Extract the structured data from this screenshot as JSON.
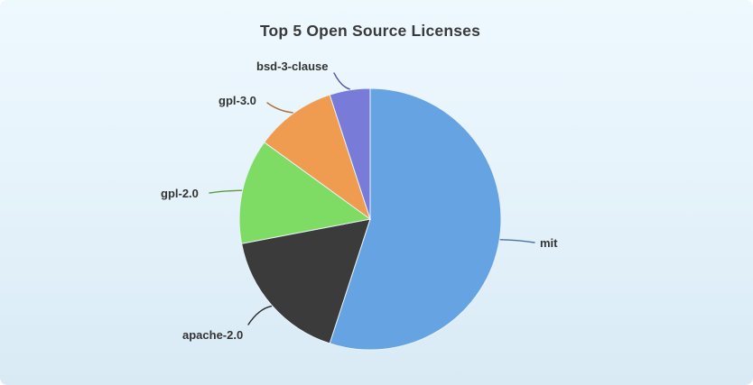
{
  "page": {
    "background_gradient": [
      "#eef9fe",
      "#d9eaf5"
    ]
  },
  "chart_data": {
    "type": "pie",
    "title": "Top 5 Open Source Licenses",
    "slices": [
      {
        "name": "mit",
        "value": 55,
        "color": "#66a3e3"
      },
      {
        "name": "apache-2.0",
        "value": 17,
        "color": "#3b3b3b"
      },
      {
        "name": "gpl-2.0",
        "value": 13,
        "color": "#7edb63"
      },
      {
        "name": "gpl-3.0",
        "value": 10,
        "color": "#ef9b50"
      },
      {
        "name": "bsd-3-clause",
        "value": 5,
        "color": "#797bd8"
      }
    ],
    "values_are_estimated_percent": true,
    "value_labels_shown": false,
    "start_angle_deg": 0,
    "direction": "clockwise",
    "labels": "outside with leader lines",
    "legend_position": "none"
  }
}
